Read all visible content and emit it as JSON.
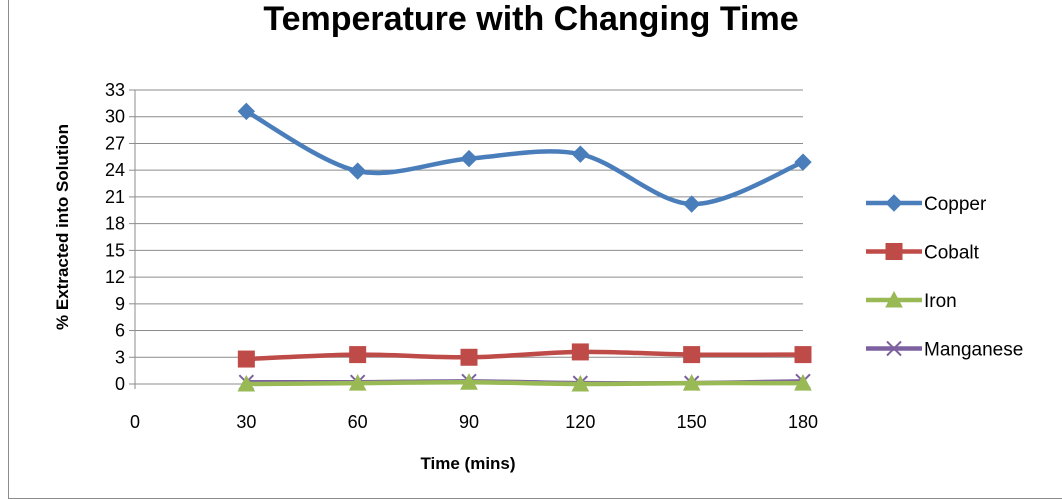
{
  "chart_data": {
    "type": "line",
    "title": "Temperature with Changing Time",
    "xlabel": "Time (mins)",
    "ylabel": "% Extracted into Solution",
    "x": [
      30,
      60,
      90,
      120,
      150,
      180
    ],
    "x_ticks": [
      "0",
      "30",
      "60",
      "90",
      "120",
      "150",
      "180"
    ],
    "y_ticks": [
      "0",
      "3",
      "6",
      "9",
      "12",
      "15",
      "18",
      "21",
      "24",
      "27",
      "30",
      "33"
    ],
    "xlim": [
      0,
      180
    ],
    "ylim": [
      0,
      33
    ],
    "grid": "horizontal",
    "smooth": true,
    "legend_position": "right",
    "series": [
      {
        "name": "Copper",
        "color": "#4a7ebb",
        "marker": "diamond",
        "values": [
          30.6,
          23.9,
          25.3,
          25.8,
          20.2,
          24.9
        ]
      },
      {
        "name": "Cobalt",
        "color": "#be4b48",
        "marker": "square",
        "values": [
          2.8,
          3.3,
          3.0,
          3.6,
          3.3,
          3.3
        ]
      },
      {
        "name": "Iron",
        "color": "#98b954",
        "marker": "triangle",
        "values": [
          0.0,
          0.1,
          0.2,
          0.0,
          0.1,
          0.1
        ]
      },
      {
        "name": "Manganese",
        "color": "#7d60a0",
        "marker": "x",
        "values": [
          0.2,
          0.2,
          0.3,
          0.1,
          0.1,
          0.3
        ]
      }
    ]
  }
}
